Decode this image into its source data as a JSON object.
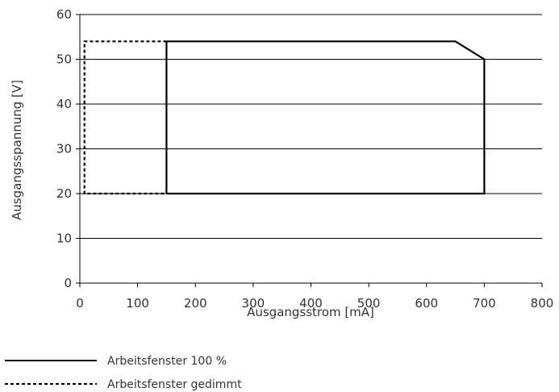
{
  "chart_data": {
    "type": "line",
    "title": "",
    "xlabel": "Ausgangsstrom [mA]",
    "ylabel": "Ausgangsspannung [V]",
    "xlim": [
      0,
      800
    ],
    "ylim": [
      0,
      60
    ],
    "x_ticks": [
      0,
      100,
      200,
      300,
      400,
      500,
      600,
      700,
      800
    ],
    "y_ticks": [
      0,
      10,
      20,
      30,
      40,
      50,
      60
    ],
    "grid": "horizontal",
    "legend_position": "bottom-left",
    "series": [
      {
        "name": "Arbeitsfenster 100 %",
        "style": "solid",
        "color": "#000000",
        "points": [
          [
            150,
            20
          ],
          [
            150,
            54
          ],
          [
            650,
            54
          ],
          [
            700,
            50
          ],
          [
            700,
            20
          ],
          [
            150,
            20
          ]
        ]
      },
      {
        "name": "Arbeitsfenster gedimmt",
        "style": "dashed",
        "color": "#000000",
        "points": [
          [
            150,
            54
          ],
          [
            8,
            54
          ],
          [
            8,
            20
          ],
          [
            150,
            20
          ]
        ]
      }
    ]
  }
}
